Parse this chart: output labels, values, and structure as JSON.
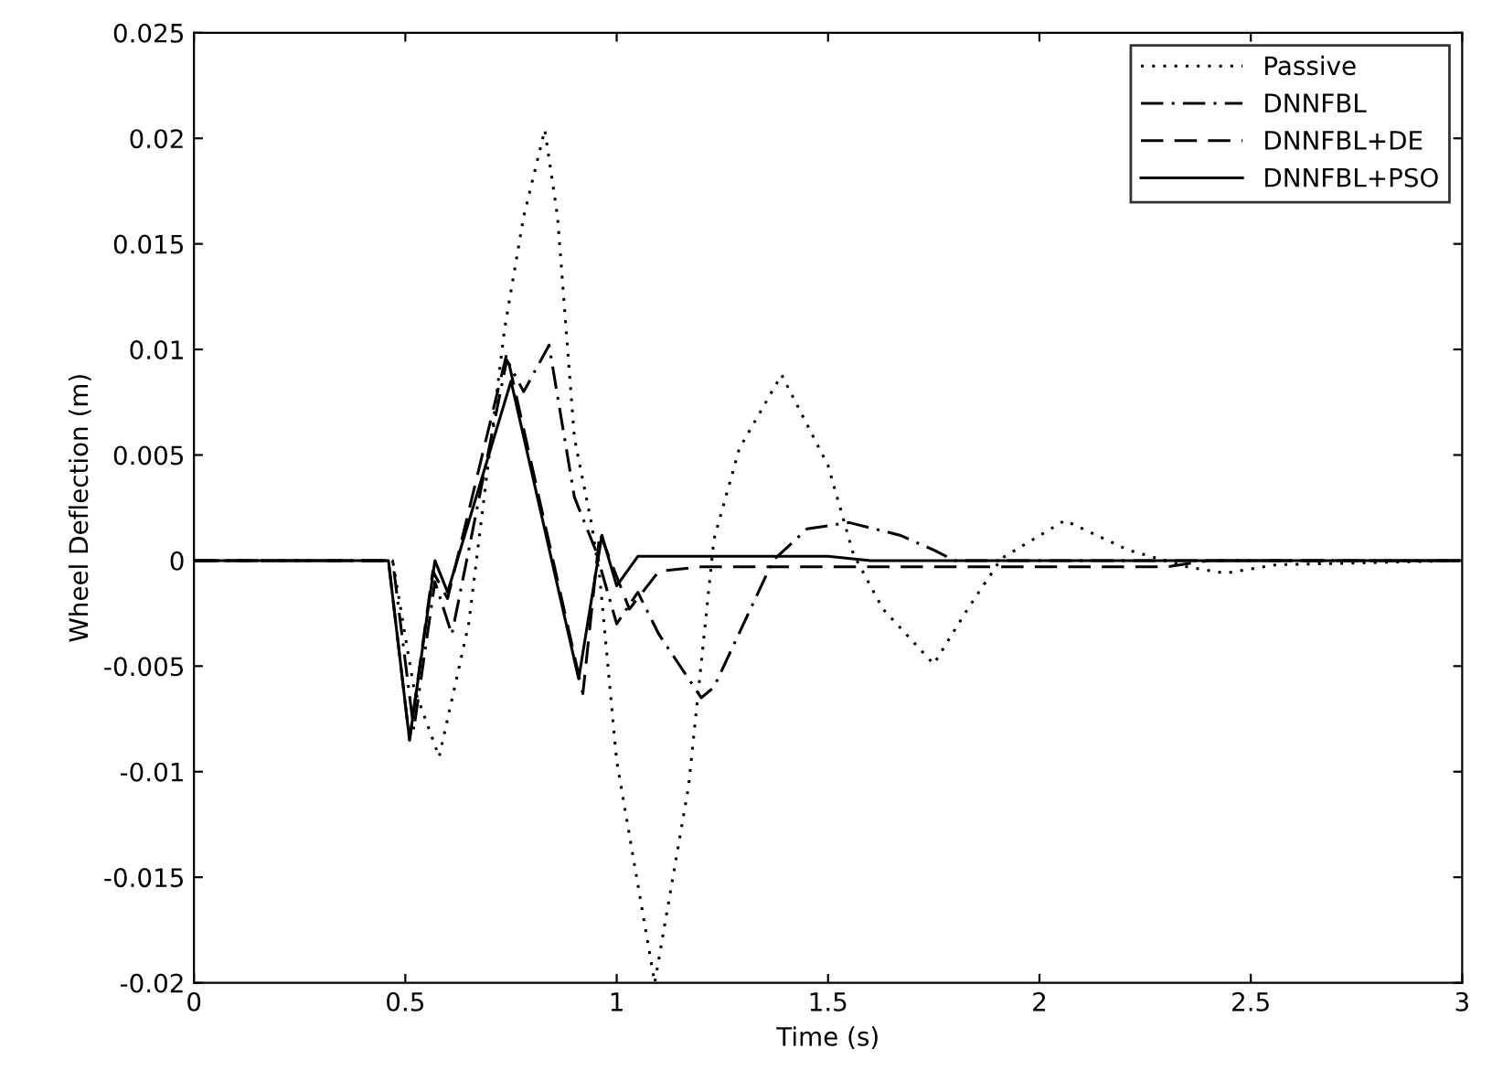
{
  "chart_data": {
    "type": "line",
    "xlabel": "Time (s)",
    "ylabel": "Wheel Deflection (m)",
    "xlim": [
      0,
      3
    ],
    "ylim": [
      -0.02,
      0.025
    ],
    "xticks": [
      0,
      0.5,
      1,
      1.5,
      2,
      2.5,
      3
    ],
    "yticks": [
      -0.02,
      -0.015,
      -0.01,
      -0.005,
      0,
      0.005,
      0.01,
      0.015,
      0.02,
      0.025
    ],
    "grid": false,
    "legend": "top right",
    "marker": "none",
    "series": [
      {
        "name": "Passive",
        "color": "#000000",
        "line_style": "dotted",
        "x": [
          0,
          0.47,
          0.52,
          0.58,
          0.65,
          0.735,
          0.78,
          0.83,
          0.86,
          0.9,
          0.94,
          0.96,
          1.0,
          1.09,
          1.17,
          1.23,
          1.29,
          1.39,
          1.5,
          1.56,
          1.63,
          1.75,
          1.83,
          1.91,
          2.06,
          2.21,
          2.35,
          2.44,
          2.56,
          3
        ],
        "values": [
          0,
          0,
          -0.006,
          -0.0093,
          -0.003,
          0.011,
          0.0163,
          0.0204,
          0.0163,
          0.0058,
          0.0018,
          -0.0008,
          -0.0095,
          -0.02,
          -0.0107,
          0.001,
          0.0053,
          0.0088,
          0.0045,
          0.0003,
          -0.0023,
          -0.0049,
          -0.0023,
          0.0001,
          0.0019,
          0.0005,
          -0.0003,
          -0.0006,
          -0.0002,
          0
        ]
      },
      {
        "name": "DNNFBL",
        "color": "#000000",
        "line_style": "dashdot",
        "x": [
          0,
          0.47,
          0.52,
          0.57,
          0.61,
          0.74,
          0.78,
          0.84,
          0.9,
          0.95,
          1.0,
          1.05,
          1.1,
          1.2,
          1.23,
          1.37,
          1.45,
          1.55,
          1.67,
          1.75,
          1.8,
          3
        ],
        "values": [
          0,
          0,
          -0.008,
          -0.001,
          -0.0035,
          0.0095,
          0.008,
          0.0102,
          0.003,
          0.0005,
          -0.003,
          -0.0015,
          -0.0035,
          -0.0065,
          -0.006,
          0,
          0.0015,
          0.0018,
          0.0012,
          0.0005,
          0,
          0
        ]
      },
      {
        "name": "DNNFBL+DE",
        "color": "#000000",
        "line_style": "dashed",
        "x": [
          0,
          0.46,
          0.51,
          0.565,
          0.6,
          0.74,
          0.92,
          0.96,
          1.03,
          1.1,
          1.2,
          2.3,
          2.4,
          3
        ],
        "values": [
          0,
          0,
          -0.0085,
          -0.0005,
          -0.0018,
          0.0098,
          -0.0063,
          0.0013,
          -0.0023,
          -0.0005,
          -0.0003,
          -0.0003,
          0,
          0
        ]
      },
      {
        "name": "DNNFBL+PSO",
        "color": "#000000",
        "line_style": "solid",
        "x": [
          0,
          0.46,
          0.51,
          0.57,
          0.6,
          0.75,
          0.91,
          0.965,
          1.0,
          1.05,
          1.2,
          1.5,
          1.6,
          3
        ],
        "values": [
          0,
          0,
          -0.0085,
          0,
          -0.0015,
          0.0085,
          -0.0056,
          0.0012,
          -0.0012,
          0.0002,
          0.0002,
          0.0002,
          0,
          0
        ]
      }
    ]
  }
}
